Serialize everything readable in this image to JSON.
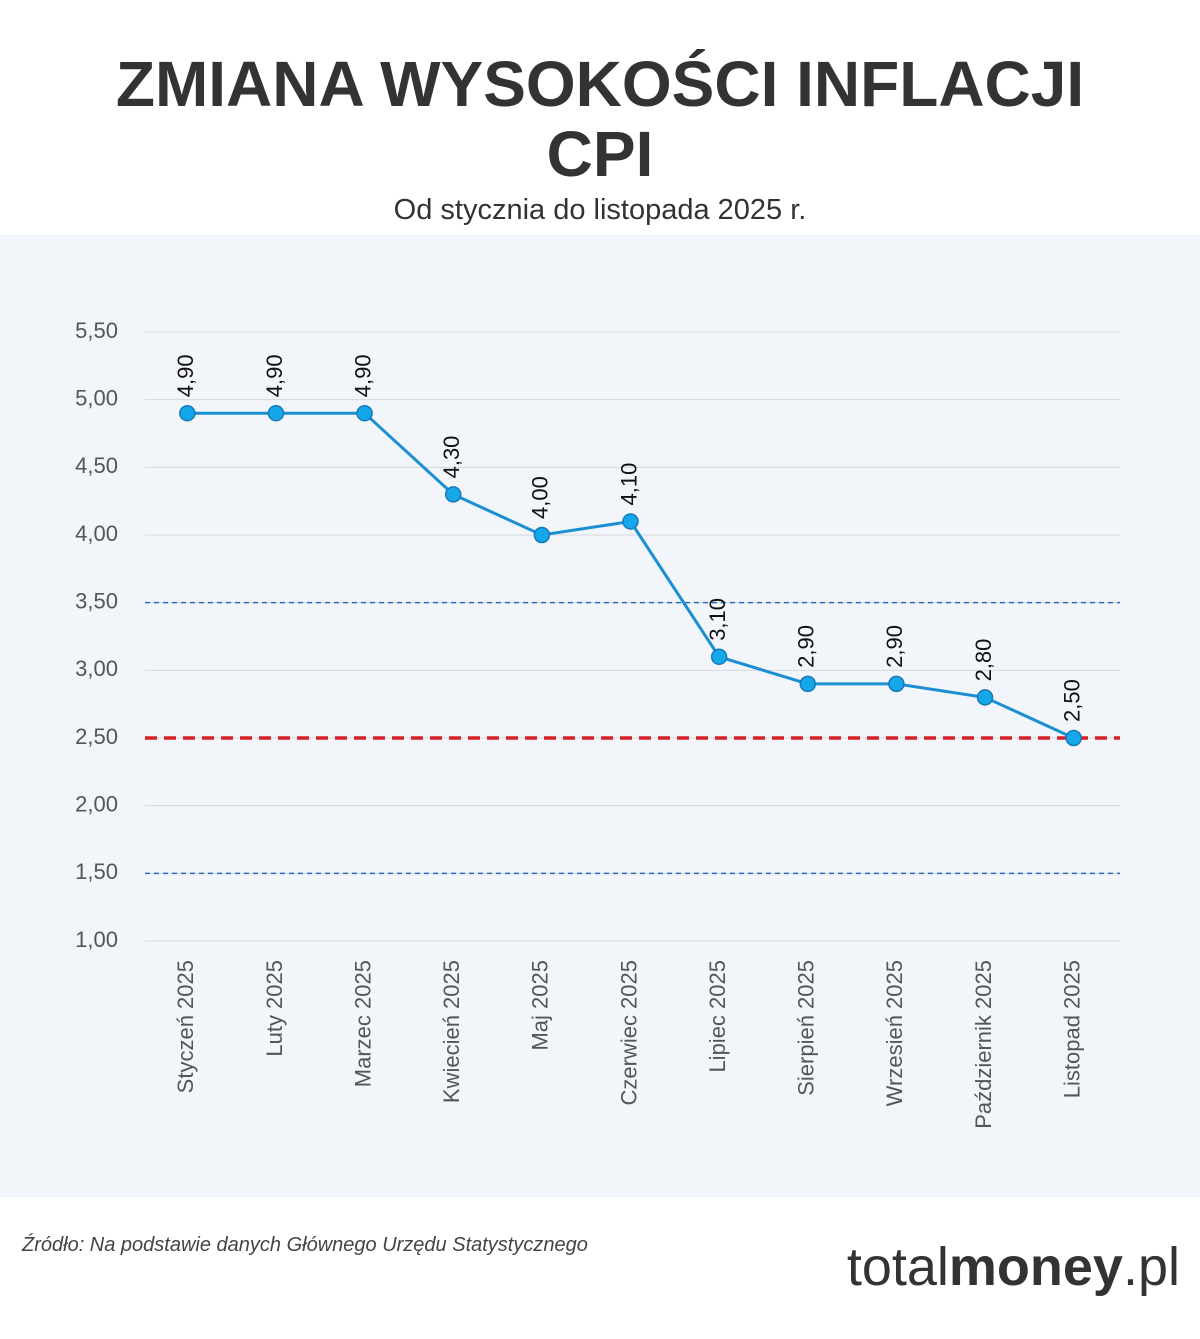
{
  "chart_data": {
    "type": "line",
    "title": [
      "ZMIANA WYSOKOŚCI INFLACJI",
      "CPI"
    ],
    "subtitle": "Od stycznia do listopada 2025 r.",
    "source": "Źródło: Na podstawie danych Głównego Urzędu Statystycznego",
    "logo": [
      "total",
      "money",
      ".pl"
    ],
    "categories": [
      "Styczeń 2025",
      "Luty 2025",
      "Marzec 2025",
      "Kwiecień 2025",
      "Maj 2025",
      "Czerwiec 2025",
      "Lipiec 2025",
      "Sierpień 2025",
      "Wrzesień 2025",
      "Październik 2025",
      "Listopad 2025"
    ],
    "values": [
      4.9,
      4.9,
      4.9,
      4.3,
      4.0,
      4.1,
      3.1,
      2.9,
      2.9,
      2.8,
      2.5
    ],
    "value_labels": [
      "4,90",
      "4,90",
      "4,90",
      "4,30",
      "4,00",
      "4,10",
      "3,10",
      "2,90",
      "2,90",
      "2,80",
      "2,50"
    ],
    "color": "#1b8fd2",
    "marker_color": "#14a8ea",
    "ylim": [
      1,
      5.5
    ],
    "yticks": [
      {
        "value": 1,
        "label": "1,00"
      },
      {
        "value": 1.5,
        "label": "1,50"
      },
      {
        "value": 2,
        "label": "2,00"
      },
      {
        "value": 2.5,
        "label": "2,50"
      },
      {
        "value": 3,
        "label": "3,00"
      },
      {
        "value": 3.5,
        "label": "3,50"
      },
      {
        "value": 4,
        "label": "4,00"
      },
      {
        "value": 4.5,
        "label": "4,50"
      },
      {
        "value": 5,
        "label": "5,00"
      },
      {
        "value": 5.5,
        "label": "5,50"
      }
    ],
    "grid": true,
    "reference_lines": [
      {
        "value": 3.5,
        "color": "#2a6fc2"
      },
      {
        "value": 1.5,
        "color": "#2a6fc2"
      },
      {
        "value": 2.5,
        "color": "#d7202a"
      }
    ]
  }
}
